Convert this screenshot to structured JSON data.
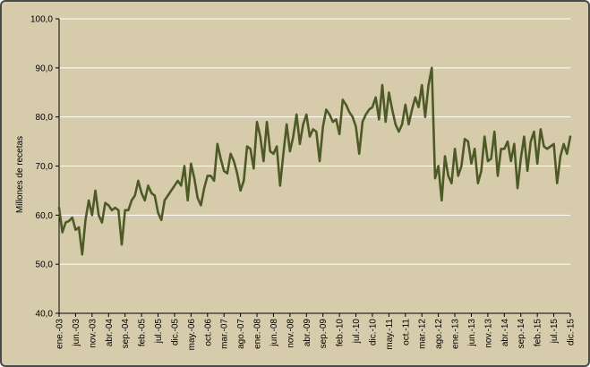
{
  "chart_data": {
    "type": "line",
    "title": "",
    "xlabel": "",
    "ylabel": "Millones de recetas",
    "ylim": [
      40,
      100
    ],
    "y_ticks": [
      "40,0",
      "50,0",
      "60,0",
      "70,0",
      "80,0",
      "90,0",
      "100,0"
    ],
    "grid": true,
    "legend": "none",
    "line_color": "#4e5a26",
    "x_tick_labels": [
      "ene.-03",
      "jun.-03",
      "nov.-03",
      "abr.-04",
      "sep.-04",
      "feb.-05",
      "jul.-05",
      "dic.-05",
      "may.-06",
      "oct.-06",
      "mar.-07",
      "ago.-07",
      "ene.-08",
      "jun.-08",
      "nov.-08",
      "abr.-09",
      "sep.-09",
      "feb.-10",
      "jul.-10",
      "dic.-10",
      "may.-11",
      "oct.-11",
      "mar.-12",
      "ago.-12",
      "ene.-13",
      "jun.-13",
      "nov.-13",
      "abr.-14",
      "sep.-14",
      "feb.-15",
      "jul.-15",
      "dic.-15"
    ],
    "x_start": "2003-01",
    "x_end": "2015-12",
    "series": [
      {
        "values": [
          61.5,
          56.5,
          58.5,
          58.8,
          59.5,
          57,
          57.5,
          52,
          59,
          63,
          60,
          65,
          60,
          58.5,
          62.5,
          62,
          61,
          61.5,
          61,
          54,
          61,
          61,
          63,
          64,
          67,
          64.5,
          63,
          66,
          64.5,
          64,
          60.5,
          59,
          63,
          64,
          65,
          66,
          67,
          66,
          70,
          63,
          70.5,
          67.5,
          63.5,
          62,
          65.5,
          68,
          68,
          67,
          74.5,
          71.5,
          69,
          68.5,
          72.5,
          71,
          68.5,
          65,
          67,
          74,
          73.5,
          69.5,
          79,
          76,
          71,
          79,
          73,
          72.5,
          74,
          66,
          72.5,
          78.5,
          73,
          76,
          80.5,
          74.5,
          78.5,
          80.5,
          76,
          77.5,
          77,
          71,
          78,
          81.5,
          80.5,
          79,
          79.5,
          76.5,
          83.5,
          82.5,
          81,
          80,
          78,
          72.5,
          79,
          80.5,
          81.5,
          82,
          84,
          79.5,
          86.5,
          79,
          85,
          81.5,
          78.5,
          77,
          78.5,
          82.5,
          78.5,
          81.5,
          84,
          82,
          86.5,
          80,
          86.5,
          90,
          67.5,
          70,
          63,
          72,
          68,
          66.5,
          73.5,
          68,
          70,
          75.5,
          75,
          70.5,
          73.5,
          66.5,
          69,
          76,
          71,
          71.5,
          77,
          68,
          73.5,
          73.5,
          75,
          71,
          74.5,
          65.5,
          71.5,
          76,
          69,
          75,
          77,
          70.5,
          77.5,
          74,
          73.5,
          74,
          74.5,
          66.5,
          72,
          74.5,
          72.5,
          76
        ]
      }
    ]
  }
}
